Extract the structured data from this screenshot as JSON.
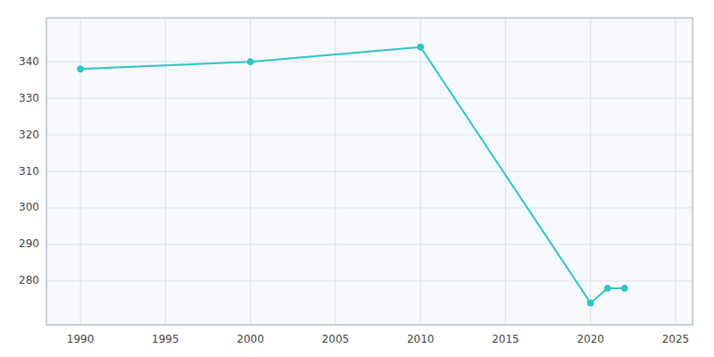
{
  "chart_data": {
    "type": "line",
    "x": [
      1990,
      2000,
      2010,
      2020,
      2021,
      2022
    ],
    "values": [
      338,
      340,
      344,
      274,
      278,
      278
    ],
    "color": "#2EC4C4",
    "marker": "circle",
    "xlim": [
      1988,
      2026
    ],
    "ylim": [
      268,
      352
    ],
    "xticks": [
      1990,
      1995,
      2000,
      2005,
      2010,
      2015,
      2020,
      2025
    ],
    "yticks": [
      280,
      290,
      300,
      310,
      320,
      330,
      340
    ],
    "grid": true
  }
}
